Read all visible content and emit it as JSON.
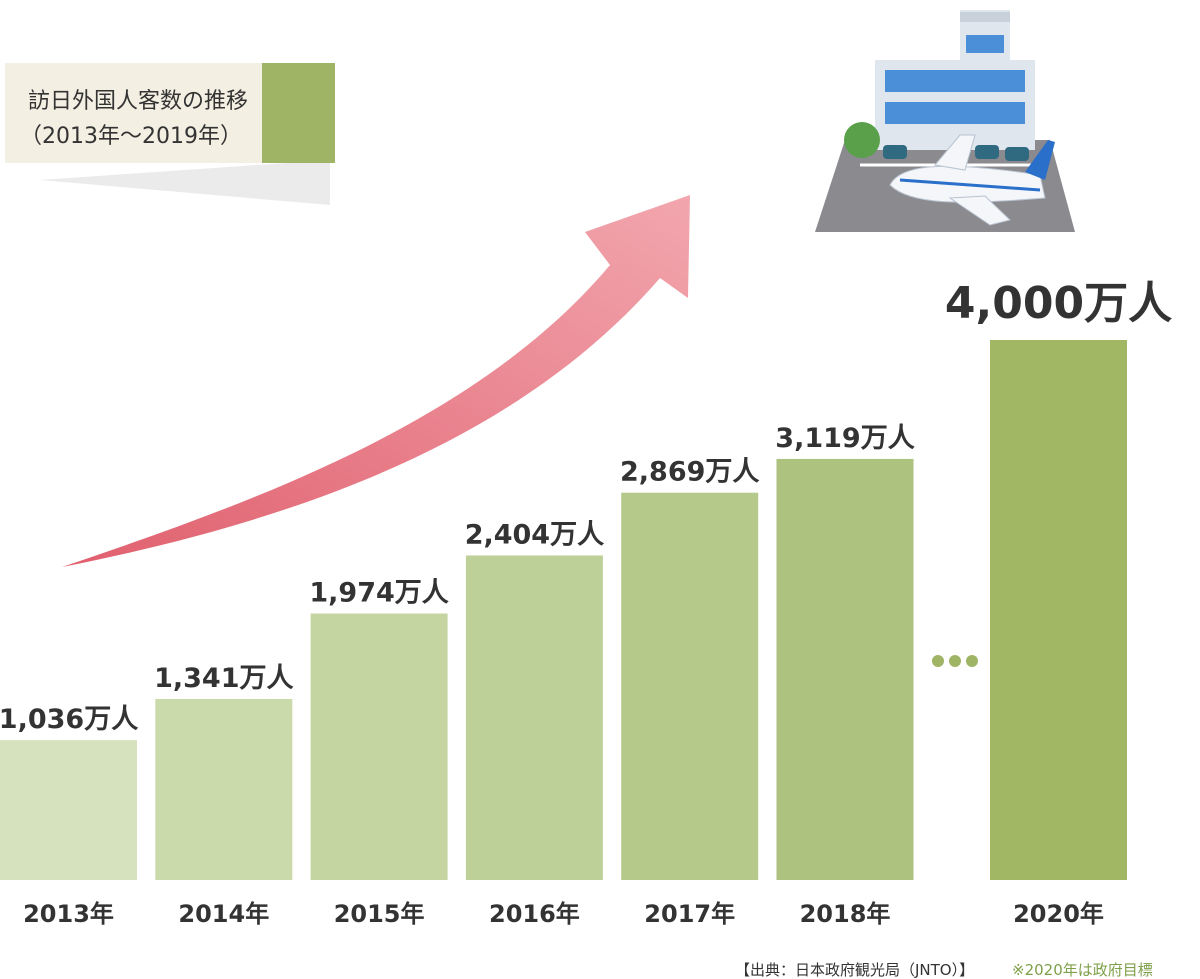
{
  "chart_data": {
    "type": "bar",
    "title": "訪日外国人客数の推移",
    "subtitle": "（2013年～2019年）",
    "categories": [
      "2013年",
      "2014年",
      "2015年",
      "2016年",
      "2017年",
      "2018年",
      "2020年"
    ],
    "values": [
      1036,
      1341,
      1974,
      2404,
      2869,
      3119,
      4000
    ],
    "value_labels": [
      "1,036万人",
      "1,341万人",
      "1,974万人",
      "2,404万人",
      "2,869万人",
      "3,119万人",
      "4,000万人"
    ],
    "colors": [
      "#d6e1be",
      "#cbdaab",
      "#c4d5a2",
      "#bdd097",
      "#b5ca8a",
      "#adc27e",
      "#a1b764"
    ],
    "source": "【出典：日本政府観光局（JNTO）】",
    "note": "※2020年は政府目標"
  }
}
